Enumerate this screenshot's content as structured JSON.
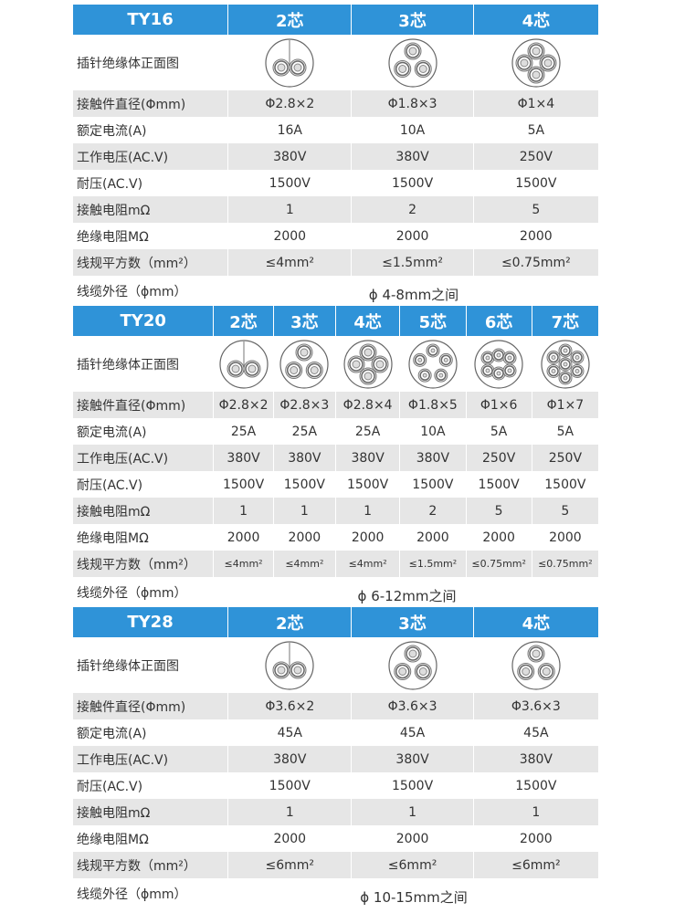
{
  "colors": {
    "header": "#2f93d8",
    "stripe": "#e6e6e6"
  },
  "row_labels": [
    "插针绝缘体正面图",
    "接触件直径(Φmm)",
    "额定电流(A)",
    "工作电压(AC.V)",
    "耐压(AC.V)",
    "接触电阻mΩ",
    "绝缘电阻MΩ",
    "线规平方数（mm²）",
    "线缆外径（ϕmm）"
  ],
  "sections": [
    {
      "model": "TY16",
      "cores": [
        "2芯",
        "3芯",
        "4芯"
      ],
      "pins": [
        2,
        3,
        4
      ],
      "rows": [
        [
          "Φ2.8×2",
          "Φ1.8×3",
          "Φ1×4"
        ],
        [
          "16A",
          "10A",
          "5A"
        ],
        [
          "380V",
          "380V",
          "250V"
        ],
        [
          "1500V",
          "1500V",
          "1500V"
        ],
        [
          "1",
          "2",
          "5"
        ],
        [
          "2000",
          "2000",
          "2000"
        ],
        [
          "≤4mm²",
          "≤1.5mm²",
          "≤0.75mm²"
        ]
      ],
      "cable": "ϕ 4-8mm之间"
    },
    {
      "model": "TY20",
      "cores": [
        "2芯",
        "3芯",
        "4芯",
        "5芯",
        "6芯",
        "7芯"
      ],
      "pins": [
        2,
        3,
        4,
        5,
        6,
        7
      ],
      "rows": [
        [
          "Φ2.8×2",
          "Φ2.8×3",
          "Φ2.8×4",
          "Φ1.8×5",
          "Φ1×6",
          "Φ1×7"
        ],
        [
          "25A",
          "25A",
          "25A",
          "10A",
          "5A",
          "5A"
        ],
        [
          "380V",
          "380V",
          "380V",
          "380V",
          "250V",
          "250V"
        ],
        [
          "1500V",
          "1500V",
          "1500V",
          "1500V",
          "1500V",
          "1500V"
        ],
        [
          "1",
          "1",
          "1",
          "2",
          "5",
          "5"
        ],
        [
          "2000",
          "2000",
          "2000",
          "2000",
          "2000",
          "2000"
        ],
        [
          "≤4mm²",
          "≤4mm²",
          "≤4mm²",
          "≤1.5mm²",
          "≤0.75mm²",
          "≤0.75mm²"
        ]
      ],
      "cable": "ϕ 6-12mm之间"
    },
    {
      "model": "TY28",
      "cores": [
        "2芯",
        "3芯",
        "4芯"
      ],
      "pins": [
        2,
        3,
        3
      ],
      "rows": [
        [
          "Φ3.6×2",
          "Φ3.6×3",
          "Φ3.6×3"
        ],
        [
          "45A",
          "45A",
          "45A"
        ],
        [
          "380V",
          "380V",
          "380V"
        ],
        [
          "1500V",
          "1500V",
          "1500V"
        ],
        [
          "1",
          "1",
          "1"
        ],
        [
          "2000",
          "2000",
          "2000"
        ],
        [
          "≤6mm²",
          "≤6mm²",
          "≤6mm²"
        ]
      ],
      "cable": "ϕ 10-15mm之间"
    }
  ]
}
